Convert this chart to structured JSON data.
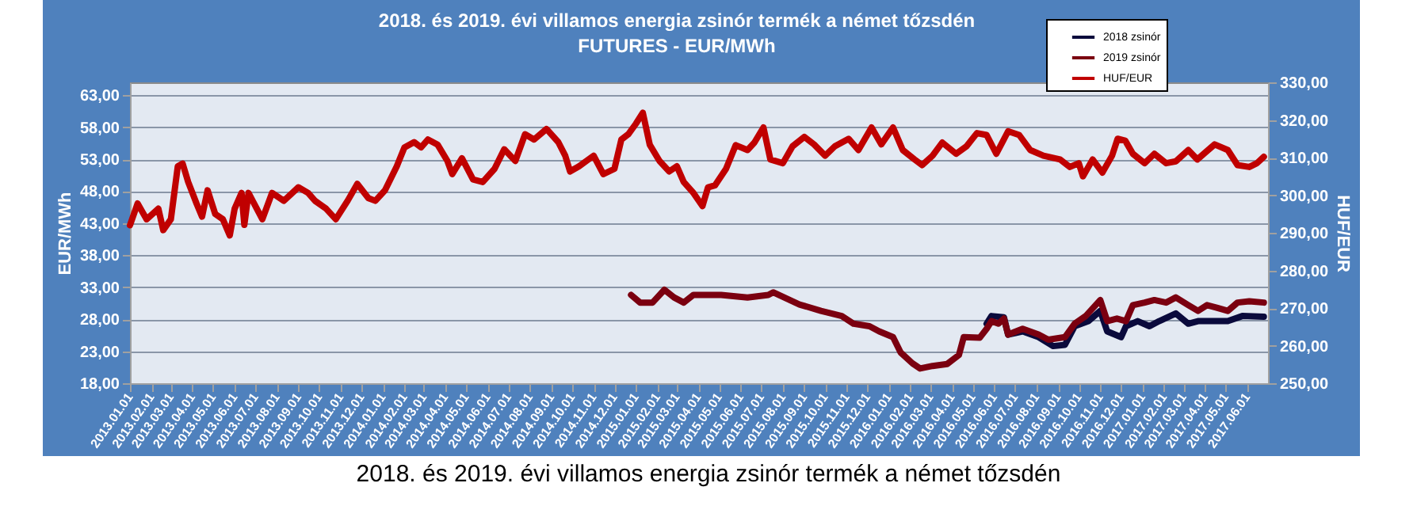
{
  "chart_data": {
    "type": "line",
    "title": "2018. és 2019. évi villamos energia zsinór termék a német tőzsdén",
    "subtitle": "FUTURES - EUR/MWh",
    "ylabel": "EUR/MWh",
    "y2label": "HUF/EUR",
    "annotations": [
      "2018. és 2019. évi villamos energia zsinór termék a német tőzsdén"
    ],
    "xlim": [
      "2013-01-01",
      "2017-07-01"
    ],
    "xticks": [
      {
        "value": "2013-01-01",
        "label": "2013.01.01"
      },
      {
        "value": "2013-02-01",
        "label": "2013.02.01"
      },
      {
        "value": "2013-03-01",
        "label": "2013.03.01"
      },
      {
        "value": "2013-04-01",
        "label": "2013.04.01"
      },
      {
        "value": "2013-05-01",
        "label": "2013.05.01"
      },
      {
        "value": "2013-06-01",
        "label": "2013.06.01"
      },
      {
        "value": "2013-07-01",
        "label": "2013.07.01"
      },
      {
        "value": "2013-08-01",
        "label": "2013.08.01"
      },
      {
        "value": "2013-09-01",
        "label": "2013.09.01"
      },
      {
        "value": "2013-10-01",
        "label": "2013.10.01"
      },
      {
        "value": "2013-11-01",
        "label": "2013.11.01"
      },
      {
        "value": "2013-12-01",
        "label": "2013.12.01"
      },
      {
        "value": "2014-01-01",
        "label": "2014.01.01"
      },
      {
        "value": "2014-02-01",
        "label": "2014.02.01"
      },
      {
        "value": "2014-03-01",
        "label": "2014.03.01"
      },
      {
        "value": "2014-04-01",
        "label": "2014.04.01"
      },
      {
        "value": "2014-05-01",
        "label": "2014.05.01"
      },
      {
        "value": "2014-06-01",
        "label": "2014.06.01"
      },
      {
        "value": "2014-07-01",
        "label": "2014.07.01"
      },
      {
        "value": "2014-08-01",
        "label": "2014.08.01"
      },
      {
        "value": "2014-09-01",
        "label": "2014.09.01"
      },
      {
        "value": "2014-10-01",
        "label": "2014.10.01"
      },
      {
        "value": "2014-11-01",
        "label": "2014.11.01"
      },
      {
        "value": "2014-12-01",
        "label": "2014.12.01"
      },
      {
        "value": "2015-01-01",
        "label": "2015.01.01"
      },
      {
        "value": "2015-02-01",
        "label": "2015.02.01"
      },
      {
        "value": "2015-03-01",
        "label": "2015.03.01"
      },
      {
        "value": "2015-04-01",
        "label": "2015.04.01"
      },
      {
        "value": "2015-05-01",
        "label": "2015.05.01"
      },
      {
        "value": "2015-06-01",
        "label": "2015.06.01"
      },
      {
        "value": "2015-07-01",
        "label": "2015.07.01"
      },
      {
        "value": "2015-08-01",
        "label": "2015.08.01"
      },
      {
        "value": "2015-09-01",
        "label": "2015.09.01"
      },
      {
        "value": "2015-10-01",
        "label": "2015.10.01"
      },
      {
        "value": "2015-11-01",
        "label": "2015.11.01"
      },
      {
        "value": "2015-12-01",
        "label": "2015.12.01"
      },
      {
        "value": "2016-01-01",
        "label": "2016.01.01"
      },
      {
        "value": "2016-02-01",
        "label": "2016.02.01"
      },
      {
        "value": "2016-03-01",
        "label": "2016.03.01"
      },
      {
        "value": "2016-04-01",
        "label": "2016.04.01"
      },
      {
        "value": "2016-05-01",
        "label": "2016.05.01"
      },
      {
        "value": "2016-06-01",
        "label": "2016.06.01"
      },
      {
        "value": "2016-07-01",
        "label": "2016.07.01"
      },
      {
        "value": "2016-08-01",
        "label": "2016.08.01"
      },
      {
        "value": "2016-09-01",
        "label": "2016.09.01"
      },
      {
        "value": "2016-10-01",
        "label": "2016.10.01"
      },
      {
        "value": "2016-11-01",
        "label": "2016.11.01"
      },
      {
        "value": "2016-12-01",
        "label": "2016.12.01"
      },
      {
        "value": "2017-01-01",
        "label": "2017.01.01"
      },
      {
        "value": "2017-02-01",
        "label": "2017.02.01"
      },
      {
        "value": "2017-03-01",
        "label": "2017.03.01"
      },
      {
        "value": "2017-04-01",
        "label": "2017.04.01"
      },
      {
        "value": "2017-05-01",
        "label": "2017.05.01"
      },
      {
        "value": "2017-06-01",
        "label": "2017.06.01"
      }
    ],
    "ylim": [
      18,
      65
    ],
    "yticks": [
      {
        "value": 18,
        "label": "18,00"
      },
      {
        "value": 23,
        "label": "23,00"
      },
      {
        "value": 28,
        "label": "28,00"
      },
      {
        "value": 33,
        "label": "33,00"
      },
      {
        "value": 38,
        "label": "38,00"
      },
      {
        "value": 43,
        "label": "43,00"
      },
      {
        "value": 48,
        "label": "48,00"
      },
      {
        "value": 53,
        "label": "53,00"
      },
      {
        "value": 58,
        "label": "58,00"
      },
      {
        "value": 63,
        "label": "63,00"
      }
    ],
    "y2lim": [
      250,
      330
    ],
    "y2ticks": [
      {
        "value": 250,
        "label": "250,00"
      },
      {
        "value": 260,
        "label": "260,00"
      },
      {
        "value": 270,
        "label": "270,00"
      },
      {
        "value": 280,
        "label": "280,00"
      },
      {
        "value": 290,
        "label": "290,00"
      },
      {
        "value": 300,
        "label": "300,00"
      },
      {
        "value": 310,
        "label": "310,00"
      },
      {
        "value": 320,
        "label": "320,00"
      },
      {
        "value": 330,
        "label": "330,00"
      }
    ],
    "grid": "y",
    "legend": "top right",
    "marker": "none",
    "line_style": "solid",
    "series": [
      {
        "name": "2018 zsinór",
        "color": "#0a0a3c",
        "x": [
          "2016-05-21",
          "2016-05-28",
          "2016-06-15",
          "2016-06-21",
          "2016-07-12",
          "2016-08-04",
          "2016-08-25",
          "2016-09-11",
          "2016-09-25",
          "2016-10-15",
          "2016-11-01",
          "2016-11-11",
          "2016-12-01",
          "2016-12-08",
          "2016-12-25",
          "2017-01-11",
          "2017-01-25",
          "2017-02-18",
          "2017-03-08",
          "2017-03-22",
          "2017-04-11",
          "2017-05-04",
          "2017-05-25",
          "2017-06-25"
        ],
        "values": [
          27.3,
          28.5,
          28.3,
          25.6,
          26.1,
          25.2,
          23.8,
          24,
          26.9,
          27.7,
          29.3,
          26.1,
          25.2,
          26.9,
          27.7,
          26.9,
          27.7,
          28.9,
          27.3,
          27.7,
          27.7,
          27.7,
          28.5,
          28.4
        ]
      },
      {
        "name": "2019 zsinór",
        "color": "#7b0010",
        "x": [
          "2014-12-25",
          "2015-01-07",
          "2015-01-25",
          "2015-02-11",
          "2015-02-25",
          "2015-03-11",
          "2015-03-25",
          "2015-04-15",
          "2015-05-04",
          "2015-06-11",
          "2015-07-11",
          "2015-07-18",
          "2015-08-25",
          "2015-09-25",
          "2015-10-25",
          "2015-11-11",
          "2015-12-04",
          "2015-12-18",
          "2016-01-07",
          "2016-01-18",
          "2016-02-04",
          "2016-02-15",
          "2016-03-04",
          "2016-03-25",
          "2016-04-11",
          "2016-04-18",
          "2016-05-11",
          "2016-05-21",
          "2016-05-28",
          "2016-06-07",
          "2016-06-15",
          "2016-06-21",
          "2016-07-12",
          "2016-08-04",
          "2016-08-18",
          "2016-09-11",
          "2016-09-25",
          "2016-10-11",
          "2016-11-01",
          "2016-11-11",
          "2016-11-25",
          "2016-12-08",
          "2016-12-18",
          "2017-01-04",
          "2017-01-18",
          "2017-02-04",
          "2017-02-18",
          "2017-03-08",
          "2017-03-22",
          "2017-04-04",
          "2017-04-18",
          "2017-05-04",
          "2017-05-18",
          "2017-06-04",
          "2017-06-25"
        ],
        "values": [
          31.8,
          30.6,
          30.6,
          32.6,
          31.4,
          30.6,
          31.8,
          31.8,
          31.8,
          31.4,
          31.8,
          32.2,
          30.3,
          29.3,
          28.5,
          27.3,
          26.9,
          26.1,
          25.2,
          22.8,
          21.1,
          20.3,
          20.7,
          21,
          22.4,
          25.2,
          25.1,
          26.5,
          27.7,
          27.3,
          28.1,
          25.6,
          26.5,
          25.6,
          24.8,
          25.2,
          27.3,
          28.5,
          31,
          27.7,
          28.1,
          27.7,
          30.2,
          30.6,
          31,
          30.6,
          31.4,
          30.2,
          29.3,
          30.2,
          29.8,
          29.3,
          30.6,
          30.8,
          30.6
        ]
      },
      {
        "name": "HUF/EUR",
        "color": "#c00000",
        "axis": "y2",
        "x": [
          "2013-01-01",
          "2013-01-12",
          "2013-01-25",
          "2013-02-11",
          "2013-02-18",
          "2013-03-01",
          "2013-03-11",
          "2013-03-18",
          "2013-03-26",
          "2013-04-07",
          "2013-04-15",
          "2013-04-23",
          "2013-05-04",
          "2013-05-15",
          "2013-05-25",
          "2013-06-01",
          "2013-06-11",
          "2013-06-15",
          "2013-06-21",
          "2013-07-11",
          "2013-07-25",
          "2013-08-11",
          "2013-09-01",
          "2013-09-15",
          "2013-09-25",
          "2013-10-11",
          "2013-10-25",
          "2013-11-11",
          "2013-11-25",
          "2013-12-11",
          "2013-12-21",
          "2014-01-04",
          "2014-01-21",
          "2014-02-01",
          "2014-02-15",
          "2014-02-25",
          "2014-03-07",
          "2014-03-21",
          "2014-04-04",
          "2014-04-11",
          "2014-04-25",
          "2014-05-11",
          "2014-05-25",
          "2014-06-11",
          "2014-06-25",
          "2014-07-11",
          "2014-07-25",
          "2014-08-07",
          "2014-08-25",
          "2014-09-11",
          "2014-09-21",
          "2014-09-28",
          "2014-10-11",
          "2014-11-01",
          "2014-11-15",
          "2014-12-01",
          "2014-12-11",
          "2014-12-21",
          "2015-01-01",
          "2015-01-11",
          "2015-01-21",
          "2015-02-04",
          "2015-02-18",
          "2015-03-01",
          "2015-03-11",
          "2015-03-25",
          "2015-04-07",
          "2015-04-15",
          "2015-04-25",
          "2015-05-11",
          "2015-05-25",
          "2015-06-11",
          "2015-06-21",
          "2015-07-04",
          "2015-07-14",
          "2015-08-01",
          "2015-08-15",
          "2015-09-01",
          "2015-09-15",
          "2015-10-01",
          "2015-10-15",
          "2015-11-04",
          "2015-11-18",
          "2015-12-07",
          "2015-12-21",
          "2016-01-07",
          "2016-01-21",
          "2016-02-07",
          "2016-02-18",
          "2016-03-04",
          "2016-03-18",
          "2016-04-07",
          "2016-04-22",
          "2016-05-07",
          "2016-05-21",
          "2016-06-04",
          "2016-06-21",
          "2016-07-07",
          "2016-07-23",
          "2016-08-11",
          "2016-09-04",
          "2016-09-18",
          "2016-10-01",
          "2016-10-07",
          "2016-10-21",
          "2016-11-04",
          "2016-11-18",
          "2016-11-26",
          "2016-12-07",
          "2016-12-18",
          "2017-01-04",
          "2017-01-18",
          "2017-02-04",
          "2017-02-18",
          "2017-03-08",
          "2017-03-21",
          "2017-04-15",
          "2017-05-04",
          "2017-05-18",
          "2017-06-04",
          "2017-06-15",
          "2017-06-25"
        ],
        "values": [
          292,
          297.8,
          293.6,
          296.4,
          290.7,
          293.6,
          307.7,
          308.4,
          303.5,
          297.8,
          294.3,
          301.3,
          295,
          293.6,
          289.3,
          296.4,
          300.6,
          292.1,
          300.6,
          293.6,
          300.6,
          298.5,
          302.1,
          300.6,
          298.5,
          296.4,
          293.6,
          298.5,
          303,
          299.2,
          298.5,
          301.3,
          307.7,
          312.7,
          314.1,
          312.7,
          314.8,
          313.4,
          309.1,
          305.6,
          309.8,
          304.2,
          303.5,
          307,
          312.2,
          309.1,
          316.2,
          314.8,
          317.6,
          314.1,
          310.5,
          306.3,
          307.7,
          310.5,
          305.6,
          307,
          314.8,
          316.2,
          319,
          321.9,
          313.4,
          309.1,
          306.3,
          307.7,
          303.5,
          300.6,
          297.1,
          302.1,
          302.6,
          307,
          313.3,
          312,
          314,
          318,
          309.5,
          308.5,
          313,
          315.5,
          313.5,
          310.5,
          313,
          315,
          312,
          318,
          313.5,
          318,
          312,
          309.5,
          308,
          310.5,
          314,
          311,
          313,
          316.5,
          316,
          311,
          317,
          316,
          312,
          310.5,
          309.5,
          307.5,
          308.5,
          305,
          309.5,
          306,
          310.5,
          315,
          314.5,
          311,
          308.5,
          311,
          308.5,
          309,
          312,
          309.5,
          313.5,
          312,
          308,
          307.5,
          308.5,
          310.2
        ]
      }
    ]
  }
}
